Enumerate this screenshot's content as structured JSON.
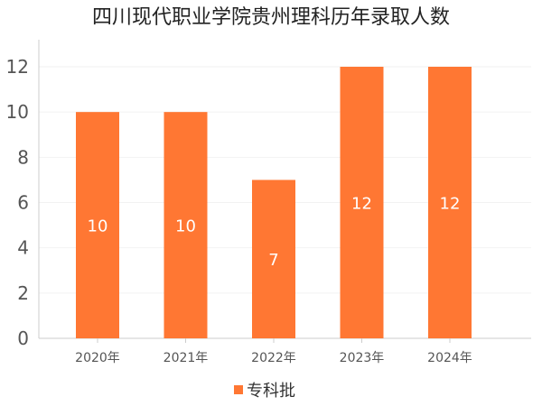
{
  "chart_data": {
    "type": "bar",
    "title": "四川现代职业学院贵州理科历年录取人数",
    "categories": [
      "2020年",
      "2021年",
      "2022年",
      "2023年",
      "2024年"
    ],
    "series": [
      {
        "name": "专科批",
        "values": [
          10,
          10,
          7,
          12,
          12
        ],
        "color": "#FF7733"
      }
    ],
    "xlabel": "",
    "ylabel": "",
    "ylim": [
      0,
      12
    ],
    "yticks": [
      0,
      2,
      4,
      6,
      8,
      10,
      12
    ],
    "grid": true,
    "legend_position": "bottom-center",
    "data_labels": true
  }
}
